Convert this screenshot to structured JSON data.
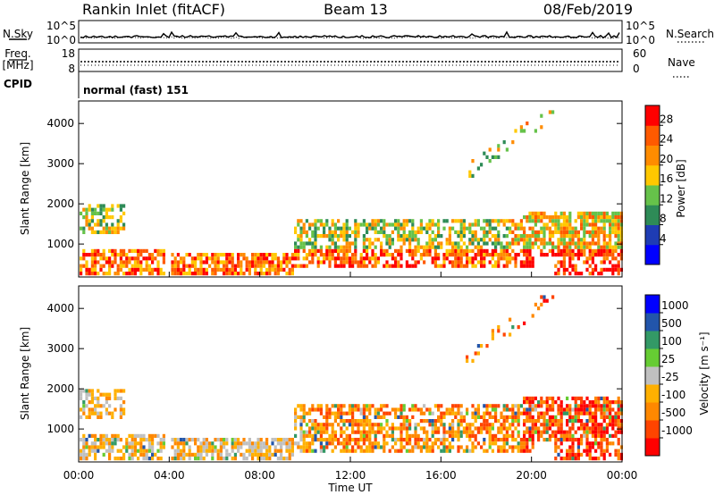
{
  "header": {
    "station": "Rankin Inlet (fitACF)",
    "beam": "Beam 13",
    "date": "08/Feb/2019"
  },
  "noise_panel": {
    "left_label": "N.Sky",
    "right_label": "N.Search",
    "ticks_left": [
      "10^5",
      "10^0"
    ],
    "ticks_right": [
      "10^5",
      "10^0"
    ]
  },
  "freq_panel": {
    "left_label_1": "Freq.",
    "left_label_2": "[MHz]",
    "right_label": "Nave",
    "ticks_left": [
      "18",
      "8"
    ],
    "ticks_right": [
      "60",
      "0"
    ]
  },
  "cpid": {
    "label": "CPID",
    "text": "normal (fast) 151"
  },
  "colors": {
    "power": [
      "#0000ff",
      "#1e3cb4",
      "#2e8b57",
      "#66c24a",
      "#ffc800",
      "#ff8c00",
      "#ff5a00",
      "#ff0000"
    ],
    "velocity": [
      "#ff0000",
      "#ff4400",
      "#ff8800",
      "#ffb000",
      "#c0c0c0",
      "#66cc33",
      "#339966",
      "#2255aa",
      "#0000ff"
    ]
  },
  "chart_data": [
    {
      "type": "heatmap",
      "name": "power",
      "ylabel": "Slant Range [km]",
      "yticks": [
        1000,
        2000,
        3000,
        4000
      ],
      "ylim": [
        180,
        4560
      ],
      "xticks": [
        "00:00",
        "04:00",
        "08:00",
        "12:00",
        "16:00",
        "20:00",
        "00:00"
      ],
      "xlim_hours": [
        0,
        24
      ],
      "colorbar": {
        "label": "Power [dB]",
        "ticks": [
          "4",
          "8",
          "12",
          "16",
          "20",
          "24",
          "28"
        ],
        "range": [
          0,
          32
        ]
      }
    },
    {
      "type": "heatmap",
      "name": "velocity",
      "ylabel": "Slant Range [km]",
      "yticks": [
        1000,
        2000,
        3000,
        4000
      ],
      "ylim": [
        180,
        4560
      ],
      "xticks": [
        "00:00",
        "04:00",
        "08:00",
        "12:00",
        "16:00",
        "20:00",
        "00:00"
      ],
      "xlim_hours": [
        0,
        24
      ],
      "xlabel": "Time UT",
      "colorbar": {
        "label": "Velocity [m s⁻¹]",
        "ticks": [
          "1000",
          "500",
          "100",
          "25",
          "-25",
          "-100",
          "-500",
          "-1000"
        ]
      }
    }
  ]
}
